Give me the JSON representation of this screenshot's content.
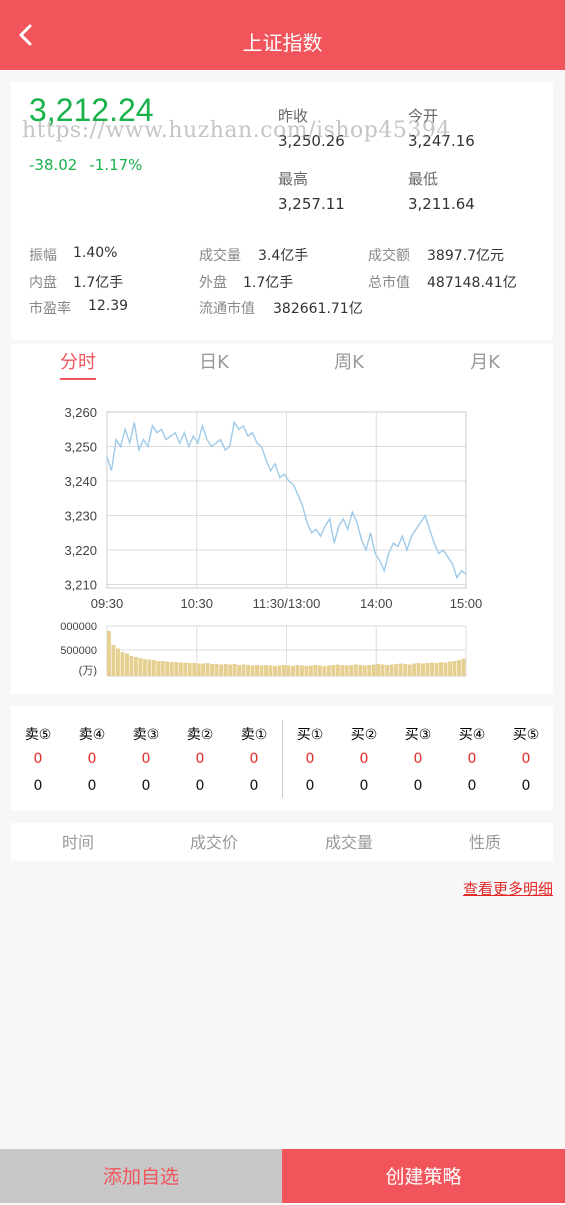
{
  "header": {
    "title": "上证指数",
    "back_icon": "chevron-left-icon"
  },
  "quote": {
    "price": "3,212.24",
    "change": "-38.02",
    "change_pct": "-1.17%",
    "prev_close_label": "昨收",
    "prev_close": "3,250.26",
    "open_label": "今开",
    "open": "3,247.16",
    "high_label": "最高",
    "high": "3,257.11",
    "low_label": "最低",
    "low": "3,211.64"
  },
  "stats": [
    {
      "label": "振幅",
      "value": "1.40%"
    },
    {
      "label": "成交量",
      "value": "3.4亿手"
    },
    {
      "label": "成交额",
      "value": "3897.7亿元"
    },
    {
      "label": "内盘",
      "value": "1.7亿手"
    },
    {
      "label": "外盘",
      "value": "1.7亿手"
    },
    {
      "label": "总市值",
      "value": "487148.41亿"
    },
    {
      "label": "市盈率",
      "value": "12.39"
    },
    {
      "label": "流通市值",
      "value": "382661.71亿"
    }
  ],
  "watermark": "https://www.huzhan.com/ishop45394",
  "tabs": [
    "分时",
    "日K",
    "周K",
    "月K"
  ],
  "active_tab": 0,
  "chart_data": {
    "type": "line",
    "x_ticks": [
      "09:30",
      "10:30",
      "11:30/13:00",
      "14:00",
      "15:00"
    ],
    "y_ticks": [
      "3,260",
      "3,250",
      "3,240",
      "3,230",
      "3,220",
      "3,210"
    ],
    "ylim": [
      3209,
      3260
    ],
    "line_color": "#9ecae8",
    "price_series": [
      3247,
      3243,
      3252,
      3250,
      3255,
      3251,
      3257,
      3249,
      3252,
      3250,
      3256,
      3254,
      3255,
      3252,
      3253,
      3254,
      3251,
      3254,
      3250,
      3253,
      3251,
      3256,
      3252,
      3250,
      3251,
      3252,
      3249,
      3250,
      3257,
      3255,
      3256,
      3253,
      3254,
      3251,
      3250,
      3246,
      3243,
      3245,
      3241,
      3242,
      3240,
      3239,
      3236,
      3233,
      3228,
      3225,
      3226,
      3224,
      3227,
      3229,
      3222,
      3227,
      3229,
      3226,
      3231,
      3228,
      3223,
      3220,
      3225,
      3219,
      3217,
      3214,
      3219,
      3222,
      3221,
      3224,
      3220,
      3224,
      3226,
      3228,
      3230,
      3226,
      3222,
      3219,
      3220,
      3218,
      3216,
      3212,
      3214,
      3213
    ],
    "volume_ticks": [
      "000000",
      "500000",
      "(万)"
    ],
    "volume_series": [
      90,
      62,
      55,
      48,
      45,
      40,
      38,
      36,
      34,
      33,
      32,
      30,
      30,
      29,
      28,
      28,
      27,
      27,
      26,
      26,
      25,
      25,
      26,
      24,
      24,
      23,
      24,
      23,
      24,
      22,
      23,
      22,
      21,
      22,
      21,
      22,
      21,
      20,
      21,
      22,
      21,
      20,
      22,
      21,
      20,
      21,
      22,
      21,
      20,
      21,
      22,
      23,
      22,
      21,
      22,
      23,
      22,
      21,
      22,
      23,
      24,
      23,
      22,
      23,
      24,
      25,
      24,
      23,
      25,
      26,
      25,
      26,
      27,
      26,
      28,
      27,
      29,
      30,
      32,
      35
    ],
    "volume_color": "#e6d091"
  },
  "order_book": {
    "headers": [
      "卖⑤",
      "卖④",
      "卖③",
      "卖②",
      "卖①",
      "买①",
      "买②",
      "买③",
      "买④",
      "买⑤"
    ],
    "prices": [
      "0",
      "0",
      "0",
      "0",
      "0",
      "0",
      "0",
      "0",
      "0",
      "0"
    ],
    "volumes": [
      "0",
      "0",
      "0",
      "0",
      "0",
      "0",
      "0",
      "0",
      "0",
      "0"
    ]
  },
  "trades": {
    "headers": [
      "时间",
      "成交价",
      "成交量",
      "性质"
    ],
    "more_label": "查看更多明细"
  },
  "footer": {
    "add_label": "添加自选",
    "create_label": "创建策略"
  }
}
